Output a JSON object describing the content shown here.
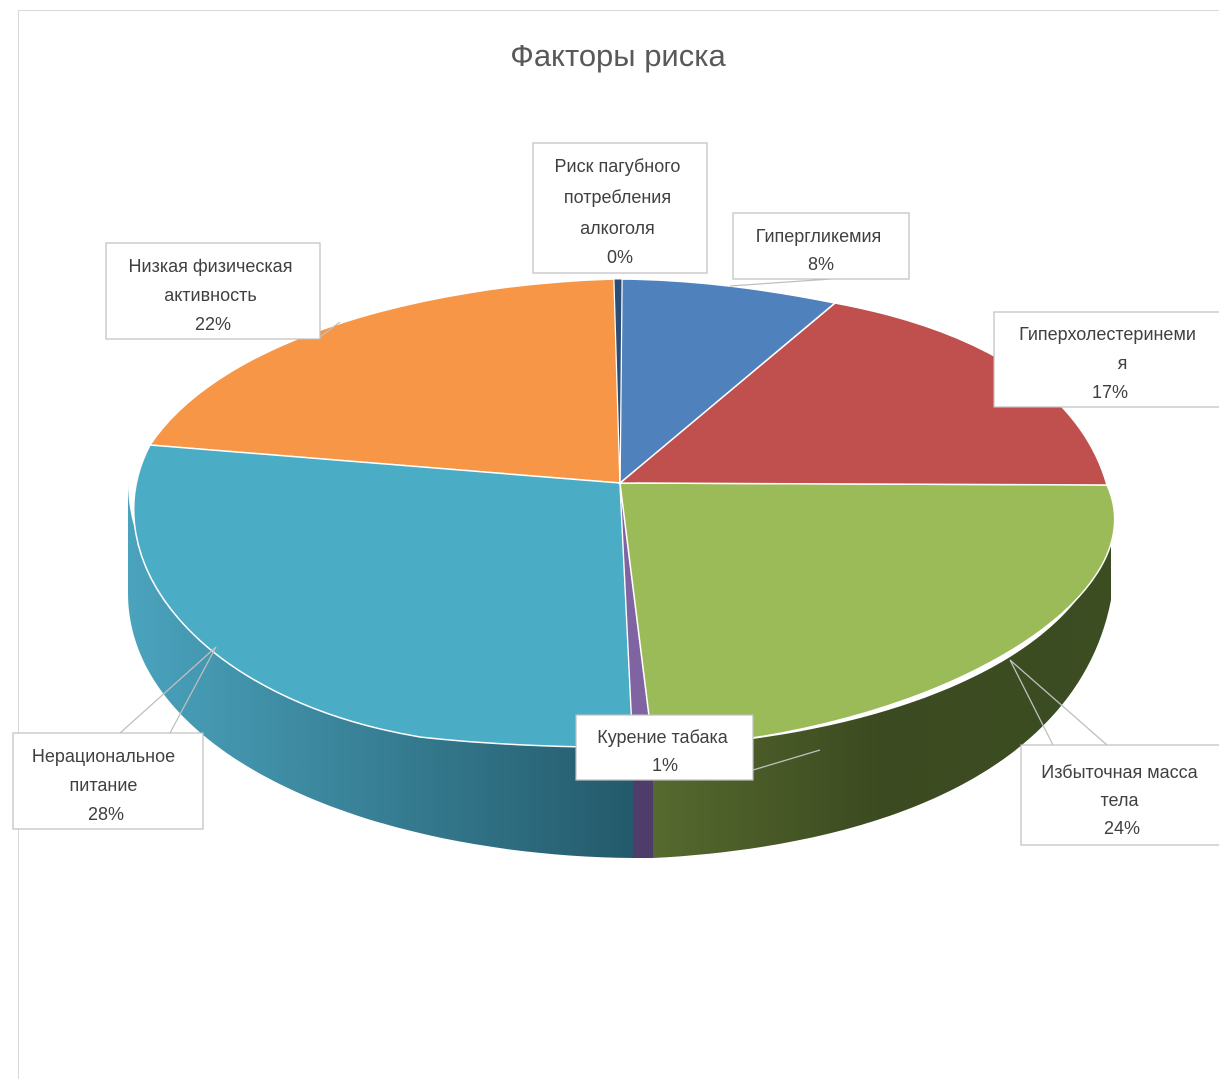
{
  "chart_data": {
    "type": "pie",
    "style": "3d",
    "title": "Факторы риска",
    "slices": [
      {
        "name": "Гипергликемия",
        "label": "Гипергликемия",
        "percent_label": "8%",
        "value": 8,
        "color": "#4f81bd"
      },
      {
        "name": "Гиперхолестеринемия",
        "label": "Гиперхолестеринеми я",
        "percent_label": "17%",
        "value": 17,
        "color": "#c0504d"
      },
      {
        "name": "Избыточная масса тела",
        "label": "Избыточная масса тела",
        "percent_label": "24%",
        "value": 24,
        "color": "#9bbb59"
      },
      {
        "name": "Курение табака",
        "label": "Курение табака",
        "percent_label": "1%",
        "value": 1,
        "color": "#8064a2"
      },
      {
        "name": "Нерациональное питание",
        "label": "Нерациональное питание",
        "percent_label": "28%",
        "value": 28,
        "color": "#4bacc6"
      },
      {
        "name": "Низкая физическая активность",
        "label": "Низкая физическая активность",
        "percent_label": "22%",
        "value": 22,
        "color": "#f79646"
      },
      {
        "name": "Риск пагубного потребления алкоголя",
        "label": "Риск пагубного потребления алкоголя",
        "percent_label": "0%",
        "value": 0,
        "color": "#2c4d75"
      }
    ]
  }
}
